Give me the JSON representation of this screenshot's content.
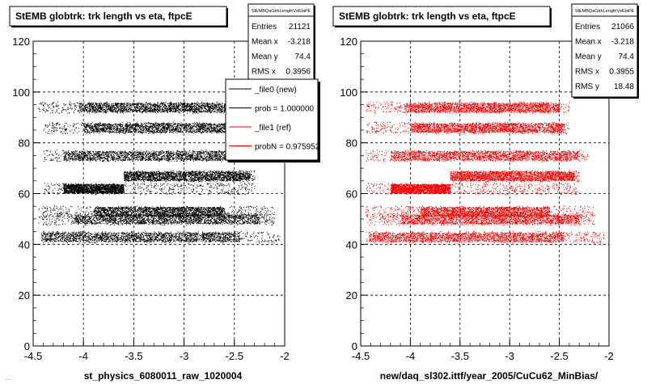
{
  "footer_text": "...",
  "chart_data": [
    {
      "type": "scatter",
      "title": "StEMB globtrk: trk length vs eta, ftpcE",
      "xlabel": "st_physics_6080011_raw_1020004",
      "ylabel": "",
      "xlim": [
        -4.5,
        -2
      ],
      "ylim": [
        0,
        120
      ],
      "x_ticks": [
        "-4.5",
        "-4",
        "-3.5",
        "-3",
        "-2.5",
        "-2"
      ],
      "y_ticks": [
        "0",
        "20",
        "40",
        "60",
        "80",
        "100",
        "120"
      ],
      "grid": true,
      "marker_color": "#000000",
      "stats": {
        "name": "StEMBQaGtrkLengthVsEtaFE",
        "rows": [
          {
            "label": "Entries",
            "value": "21121"
          },
          {
            "label": "Mean x",
            "value": "-3.218"
          },
          {
            "label": "Mean y",
            "value": "74.4"
          },
          {
            "label": "RMS x",
            "value": "0.3956"
          }
        ]
      },
      "legend": {
        "placement": "top-right",
        "entries": [
          {
            "label": "_file0 (new)",
            "color": "#000000"
          },
          {
            "label": "prob = 1.000000",
            "color": "#000000"
          },
          {
            "label": "_file1 (ref)",
            "color": "#ff0000"
          },
          {
            "label": "probN = 0.975952",
            "color": "#ff0000"
          }
        ]
      },
      "bands": [
        {
          "y": 43,
          "x_min": -4.42,
          "x_max": -2.05,
          "dense_min": -4.42,
          "dense_max": -2.45
        },
        {
          "y": 50,
          "x_min": -4.45,
          "x_max": -2.1,
          "dense_min": -4.1,
          "dense_max": -2.25
        },
        {
          "y": 53,
          "x_min": -4.45,
          "x_max": -2.1,
          "dense_min": -3.9,
          "dense_max": -2.6
        },
        {
          "y": 62,
          "x_min": -4.4,
          "x_max": -2.3,
          "dense_min": -4.2,
          "dense_max": -3.6
        },
        {
          "y": 67,
          "x_min": -3.6,
          "x_max": -2.3,
          "dense_min": -3.6,
          "dense_max": -2.35
        },
        {
          "y": 75,
          "x_min": -4.4,
          "x_max": -2.2,
          "dense_min": -4.2,
          "dense_max": -2.3
        },
        {
          "y": 86,
          "x_min": -4.4,
          "x_max": -2.4,
          "dense_min": -4.0,
          "dense_max": -2.45
        },
        {
          "y": 94,
          "x_min": -4.45,
          "x_max": -2.35,
          "dense_min": -4.05,
          "dense_max": -2.5
        }
      ]
    },
    {
      "type": "scatter",
      "title": "StEMB globtrk: trk length vs eta, ftpcE",
      "xlabel": "new/daq_sl302.ittf/year_2005/CuCu62_MinBias/",
      "ylabel": "",
      "xlim": [
        -4.5,
        -2
      ],
      "ylim": [
        0,
        120
      ],
      "x_ticks": [
        "-4.5",
        "-4",
        "-3.5",
        "-3",
        "-2.5",
        "-2"
      ],
      "y_ticks": [
        "0",
        "20",
        "40",
        "60",
        "80",
        "100",
        "120"
      ],
      "grid": true,
      "marker_color": "#ff0000",
      "stats": {
        "name": "StEMBQaGtrkLengthVsEtaFE",
        "rows": [
          {
            "label": "Entries",
            "value": "21066"
          },
          {
            "label": "Mean x",
            "value": "-3.218"
          },
          {
            "label": "Mean y",
            "value": "74.4"
          },
          {
            "label": "RMS x",
            "value": "0.3955"
          },
          {
            "label": "RMS y",
            "value": "18.48"
          }
        ]
      },
      "bands": [
        {
          "y": 43,
          "x_min": -4.45,
          "x_max": -2.05,
          "dense_min": -4.42,
          "dense_max": -2.45
        },
        {
          "y": 50,
          "x_min": -4.45,
          "x_max": -2.15,
          "dense_min": -4.1,
          "dense_max": -2.3
        },
        {
          "y": 53,
          "x_min": -4.45,
          "x_max": -2.15,
          "dense_min": -3.9,
          "dense_max": -2.6
        },
        {
          "y": 62,
          "x_min": -4.45,
          "x_max": -2.3,
          "dense_min": -4.2,
          "dense_max": -3.6
        },
        {
          "y": 67,
          "x_min": -3.6,
          "x_max": -2.3,
          "dense_min": -3.6,
          "dense_max": -2.35
        },
        {
          "y": 75,
          "x_min": -4.45,
          "x_max": -2.2,
          "dense_min": -4.2,
          "dense_max": -2.3
        },
        {
          "y": 86,
          "x_min": -4.45,
          "x_max": -2.4,
          "dense_min": -4.0,
          "dense_max": -2.45
        },
        {
          "y": 94,
          "x_min": -4.45,
          "x_max": -2.4,
          "dense_min": -4.05,
          "dense_max": -2.5
        }
      ]
    }
  ]
}
